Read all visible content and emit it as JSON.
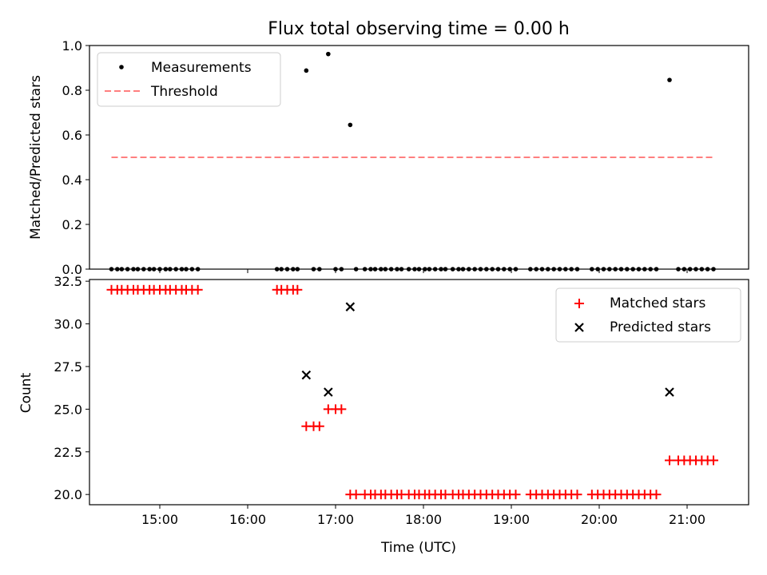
{
  "chart_data": [
    {
      "type": "scatter",
      "title": "Flux total observing time = 0.00 h",
      "ylabel": "Matched/Predicted stars",
      "xlabel": "",
      "xlim": [
        "14:12",
        "21:42"
      ],
      "ylim": [
        0.0,
        1.0
      ],
      "yticks": [
        0.0,
        0.2,
        0.4,
        0.6,
        0.8,
        1.0
      ],
      "ytick_labels": [
        "0.0",
        "0.2",
        "0.4",
        "0.6",
        "0.8",
        "1.0"
      ],
      "legend": {
        "placement": "top-left",
        "entries": [
          "Measurements",
          "Threshold"
        ]
      },
      "series": [
        {
          "name": "Measurements",
          "color": "#000000",
          "marker": "dot",
          "points": [
            [
              "14:27",
              0.0
            ],
            [
              "14:31",
              0.0
            ],
            [
              "14:34",
              0.0
            ],
            [
              "14:38",
              0.0
            ],
            [
              "14:42",
              0.0
            ],
            [
              "14:45",
              0.0
            ],
            [
              "14:49",
              0.0
            ],
            [
              "14:53",
              0.0
            ],
            [
              "14:56",
              0.0
            ],
            [
              "15:00",
              0.0
            ],
            [
              "15:04",
              0.0
            ],
            [
              "15:07",
              0.0
            ],
            [
              "15:11",
              0.0
            ],
            [
              "15:15",
              0.0
            ],
            [
              "15:18",
              0.0
            ],
            [
              "15:22",
              0.0
            ],
            [
              "15:26",
              0.0
            ],
            [
              "16:20",
              0.0
            ],
            [
              "16:23",
              0.0
            ],
            [
              "16:27",
              0.0
            ],
            [
              "16:31",
              0.0
            ],
            [
              "16:34",
              0.0
            ],
            [
              "16:40",
              0.888
            ],
            [
              "16:45",
              0.0
            ],
            [
              "16:49",
              0.0
            ],
            [
              "16:55",
              0.962
            ],
            [
              "17:00",
              0.0
            ],
            [
              "17:04",
              0.0
            ],
            [
              "17:10",
              0.645
            ],
            [
              "17:14",
              0.0
            ],
            [
              "17:20",
              0.0
            ],
            [
              "17:24",
              0.0
            ],
            [
              "17:27",
              0.0
            ],
            [
              "17:31",
              0.0
            ],
            [
              "17:34",
              0.0
            ],
            [
              "17:38",
              0.0
            ],
            [
              "17:42",
              0.0
            ],
            [
              "17:45",
              0.0
            ],
            [
              "17:50",
              0.0
            ],
            [
              "17:54",
              0.0
            ],
            [
              "17:57",
              0.0
            ],
            [
              "18:01",
              0.0
            ],
            [
              "18:04",
              0.0
            ],
            [
              "18:08",
              0.0
            ],
            [
              "18:12",
              0.0
            ],
            [
              "18:15",
              0.0
            ],
            [
              "18:20",
              0.0
            ],
            [
              "18:24",
              0.0
            ],
            [
              "18:27",
              0.0
            ],
            [
              "18:31",
              0.0
            ],
            [
              "18:35",
              0.0
            ],
            [
              "18:39",
              0.0
            ],
            [
              "18:43",
              0.0
            ],
            [
              "18:47",
              0.0
            ],
            [
              "18:51",
              0.0
            ],
            [
              "18:55",
              0.0
            ],
            [
              "18:59",
              0.0
            ],
            [
              "19:03",
              0.0
            ],
            [
              "19:13",
              0.0
            ],
            [
              "19:17",
              0.0
            ],
            [
              "19:21",
              0.0
            ],
            [
              "19:25",
              0.0
            ],
            [
              "19:29",
              0.0
            ],
            [
              "19:33",
              0.0
            ],
            [
              "19:37",
              0.0
            ],
            [
              "19:41",
              0.0
            ],
            [
              "19:45",
              0.0
            ],
            [
              "19:55",
              0.0
            ],
            [
              "19:59",
              0.0
            ],
            [
              "20:03",
              0.0
            ],
            [
              "20:07",
              0.0
            ],
            [
              "20:11",
              0.0
            ],
            [
              "20:15",
              0.0
            ],
            [
              "20:19",
              0.0
            ],
            [
              "20:23",
              0.0
            ],
            [
              "20:27",
              0.0
            ],
            [
              "20:31",
              0.0
            ],
            [
              "20:35",
              0.0
            ],
            [
              "20:39",
              0.0
            ],
            [
              "20:48",
              0.846
            ],
            [
              "20:54",
              0.0
            ],
            [
              "20:58",
              0.0
            ],
            [
              "21:02",
              0.0
            ],
            [
              "21:06",
              0.0
            ],
            [
              "21:10",
              0.0
            ],
            [
              "21:14",
              0.0
            ],
            [
              "21:18",
              0.0
            ]
          ]
        },
        {
          "name": "Threshold",
          "color": "#ff7f7f",
          "style": "dashed",
          "points": [
            [
              "14:27",
              0.5
            ],
            [
              "21:18",
              0.5
            ]
          ]
        }
      ]
    },
    {
      "type": "scatter",
      "title": "",
      "ylabel": "Count",
      "xlabel": "Time (UTC)",
      "xlim": [
        "14:12",
        "21:42"
      ],
      "ylim": [
        19.4,
        32.6
      ],
      "yticks": [
        20.0,
        22.5,
        25.0,
        27.5,
        30.0,
        32.5
      ],
      "ytick_labels": [
        "20.0",
        "22.5",
        "25.0",
        "27.5",
        "30.0",
        "32.5"
      ],
      "xticks": [
        "15:00",
        "16:00",
        "17:00",
        "18:00",
        "19:00",
        "20:00",
        "21:00"
      ],
      "xtick_labels": [
        "15:00",
        "16:00",
        "17:00",
        "18:00",
        "19:00",
        "20:00",
        "21:00"
      ],
      "legend": {
        "placement": "top-right",
        "entries": [
          "Matched stars",
          "Predicted stars"
        ]
      },
      "series": [
        {
          "name": "Matched stars",
          "color": "#ff0000",
          "marker": "plus",
          "points": [
            [
              "14:27",
              32
            ],
            [
              "14:31",
              32
            ],
            [
              "14:34",
              32
            ],
            [
              "14:38",
              32
            ],
            [
              "14:42",
              32
            ],
            [
              "14:45",
              32
            ],
            [
              "14:49",
              32
            ],
            [
              "14:53",
              32
            ],
            [
              "14:56",
              32
            ],
            [
              "15:00",
              32
            ],
            [
              "15:04",
              32
            ],
            [
              "15:07",
              32
            ],
            [
              "15:11",
              32
            ],
            [
              "15:15",
              32
            ],
            [
              "15:18",
              32
            ],
            [
              "15:22",
              32
            ],
            [
              "15:26",
              32
            ],
            [
              "16:20",
              32
            ],
            [
              "16:23",
              32
            ],
            [
              "16:27",
              32
            ],
            [
              "16:31",
              32
            ],
            [
              "16:34",
              32
            ],
            [
              "16:40",
              24
            ],
            [
              "16:45",
              24
            ],
            [
              "16:49",
              24
            ],
            [
              "16:55",
              25
            ],
            [
              "17:00",
              25
            ],
            [
              "17:04",
              25
            ],
            [
              "17:10",
              20
            ],
            [
              "17:14",
              20
            ],
            [
              "17:20",
              20
            ],
            [
              "17:24",
              20
            ],
            [
              "17:27",
              20
            ],
            [
              "17:31",
              20
            ],
            [
              "17:34",
              20
            ],
            [
              "17:38",
              20
            ],
            [
              "17:42",
              20
            ],
            [
              "17:45",
              20
            ],
            [
              "17:50",
              20
            ],
            [
              "17:54",
              20
            ],
            [
              "17:57",
              20
            ],
            [
              "18:01",
              20
            ],
            [
              "18:04",
              20
            ],
            [
              "18:08",
              20
            ],
            [
              "18:12",
              20
            ],
            [
              "18:15",
              20
            ],
            [
              "18:20",
              20
            ],
            [
              "18:24",
              20
            ],
            [
              "18:27",
              20
            ],
            [
              "18:31",
              20
            ],
            [
              "18:35",
              20
            ],
            [
              "18:39",
              20
            ],
            [
              "18:43",
              20
            ],
            [
              "18:47",
              20
            ],
            [
              "18:51",
              20
            ],
            [
              "18:55",
              20
            ],
            [
              "18:59",
              20
            ],
            [
              "19:03",
              20
            ],
            [
              "19:13",
              20
            ],
            [
              "19:17",
              20
            ],
            [
              "19:21",
              20
            ],
            [
              "19:25",
              20
            ],
            [
              "19:29",
              20
            ],
            [
              "19:33",
              20
            ],
            [
              "19:37",
              20
            ],
            [
              "19:41",
              20
            ],
            [
              "19:45",
              20
            ],
            [
              "19:55",
              20
            ],
            [
              "19:59",
              20
            ],
            [
              "20:03",
              20
            ],
            [
              "20:07",
              20
            ],
            [
              "20:11",
              20
            ],
            [
              "20:15",
              20
            ],
            [
              "20:19",
              20
            ],
            [
              "20:23",
              20
            ],
            [
              "20:27",
              20
            ],
            [
              "20:31",
              20
            ],
            [
              "20:35",
              20
            ],
            [
              "20:39",
              20
            ],
            [
              "20:48",
              22
            ],
            [
              "20:54",
              22
            ],
            [
              "20:58",
              22
            ],
            [
              "21:02",
              22
            ],
            [
              "21:06",
              22
            ],
            [
              "21:10",
              22
            ],
            [
              "21:14",
              22
            ],
            [
              "21:18",
              22
            ]
          ]
        },
        {
          "name": "Predicted stars",
          "color": "#000000",
          "marker": "x",
          "points": [
            [
              "16:40",
              27
            ],
            [
              "16:55",
              26
            ],
            [
              "17:10",
              31
            ],
            [
              "20:48",
              26
            ]
          ]
        }
      ]
    }
  ]
}
